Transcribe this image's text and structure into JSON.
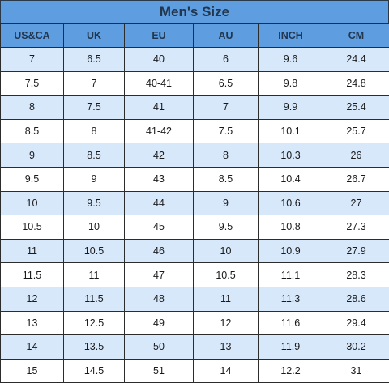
{
  "title": "Men's Size",
  "colors": {
    "header_bg": "#5e9ee0",
    "header_text": "#22364e",
    "alt_row": "#d7e8fb",
    "border": "#2c2c2c"
  },
  "columns": [
    "US&CA",
    "UK",
    "EU",
    "AU",
    "INCH",
    "CM"
  ],
  "rows": [
    [
      "7",
      "6.5",
      "40",
      "6",
      "9.6",
      "24.4"
    ],
    [
      "7.5",
      "7",
      "40-41",
      "6.5",
      "9.8",
      "24.8"
    ],
    [
      "8",
      "7.5",
      "41",
      "7",
      "9.9",
      "25.4"
    ],
    [
      "8.5",
      "8",
      "41-42",
      "7.5",
      "10.1",
      "25.7"
    ],
    [
      "9",
      "8.5",
      "42",
      "8",
      "10.3",
      "26"
    ],
    [
      "9.5",
      "9",
      "43",
      "8.5",
      "10.4",
      "26.7"
    ],
    [
      "10",
      "9.5",
      "44",
      "9",
      "10.6",
      "27"
    ],
    [
      "10.5",
      "10",
      "45",
      "9.5",
      "10.8",
      "27.3"
    ],
    [
      "11",
      "10.5",
      "46",
      "10",
      "10.9",
      "27.9"
    ],
    [
      "11.5",
      "11",
      "47",
      "10.5",
      "11.1",
      "28.3"
    ],
    [
      "12",
      "11.5",
      "48",
      "11",
      "11.3",
      "28.6"
    ],
    [
      "13",
      "12.5",
      "49",
      "12",
      "11.6",
      "29.4"
    ],
    [
      "14",
      "13.5",
      "50",
      "13",
      "11.9",
      "30.2"
    ],
    [
      "15",
      "14.5",
      "51",
      "14",
      "12.2",
      "31"
    ]
  ]
}
